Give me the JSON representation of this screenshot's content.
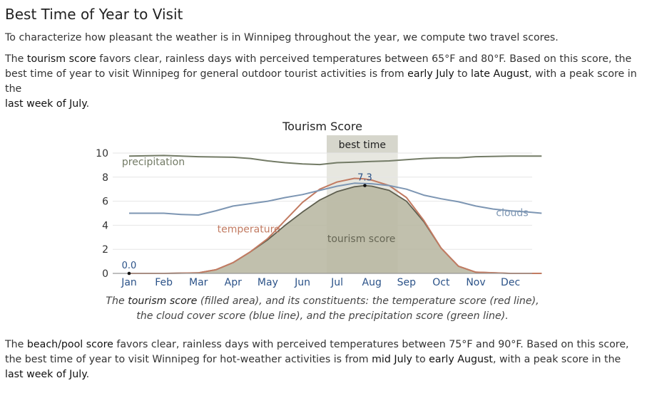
{
  "page": {
    "heading": "Best Time of Year to Visit",
    "intro": "To characterize how pleasant the weather is in Winnipeg throughout the year, we compute two travel scores.",
    "tourism": {
      "t1": "The ",
      "term": "tourism score",
      "t2": " favors clear, rainless days with perceived temperatures between 65°F and 80°F. Based on this score, the best time of year to visit Winnipeg for general outdoor tourist activities is from ",
      "start": "early July",
      "t3": " to ",
      "end": "late August",
      "t4": ", with a peak score in the ",
      "peak": "last week of July",
      "t5": "."
    },
    "beach": {
      "t1": "The ",
      "term": "beach/pool score",
      "t2": " favors clear, rainless days with perceived temperatures between 75°F and 90°F. Based on this score, the best time of year to visit Winnipeg for hot-weather activities is from ",
      "start": "mid July",
      "t3": " to ",
      "end": "early August",
      "t4": ", with a peak score in the ",
      "peak": "last week of July",
      "t5": "."
    },
    "caption": {
      "t1": "The ",
      "term": "tourism score",
      "t2": " (filled area), and its constituents: the temperature score (red line), the cloud cover score (blue line), and the precipitation score (green line)."
    }
  },
  "chart_data": {
    "type": "area",
    "title": "Tourism Score",
    "x_labels": [
      "Jan",
      "Feb",
      "Mar",
      "Apr",
      "May",
      "Jun",
      "Jul",
      "Aug",
      "Sep",
      "Oct",
      "Nov",
      "Dec"
    ],
    "y_ticks": [
      "0",
      "2",
      "4",
      "6",
      "8",
      "10"
    ],
    "ylim": [
      0,
      10
    ],
    "xlim": [
      1,
      12.9
    ],
    "grid": true,
    "highlight": {
      "label": "best time",
      "from": 6.7,
      "to": 8.75
    },
    "annotations": [
      {
        "label": "0.0",
        "x": 1,
        "y": 0.0
      },
      {
        "label": "7.3",
        "x": 7.8,
        "y": 7.3
      }
    ],
    "series": [
      {
        "name": "tourism score",
        "kind": "area",
        "color": "#b6b59f",
        "stroke": "#5f5f4f",
        "x": [
          1,
          2,
          3,
          3.5,
          4,
          4.5,
          5,
          5.5,
          6,
          6.5,
          7,
          7.5,
          7.8,
          8,
          8.5,
          9,
          9.5,
          10,
          10.5,
          11,
          12,
          12.9
        ],
        "y": [
          0,
          0,
          0.05,
          0.3,
          0.9,
          1.8,
          2.8,
          4.0,
          5.1,
          6.1,
          6.8,
          7.2,
          7.3,
          7.25,
          6.9,
          6.0,
          4.3,
          2.1,
          0.6,
          0.1,
          0,
          0
        ]
      },
      {
        "name": "temperature",
        "kind": "line",
        "color": "#c27b62",
        "x": [
          1,
          2,
          3,
          3.5,
          4,
          4.5,
          5,
          5.5,
          6,
          6.5,
          7,
          7.5,
          7.8,
          8,
          8.5,
          9,
          9.5,
          10,
          10.5,
          11,
          12,
          12.9
        ],
        "y": [
          0,
          0,
          0.05,
          0.3,
          0.9,
          1.8,
          2.9,
          4.4,
          5.9,
          7.0,
          7.6,
          7.9,
          7.85,
          7.75,
          7.3,
          6.3,
          4.4,
          2.1,
          0.6,
          0.1,
          0,
          0
        ]
      },
      {
        "name": "clouds",
        "kind": "line",
        "color": "#7d96b3",
        "x": [
          1,
          1.5,
          2,
          2.5,
          3,
          3.5,
          4,
          4.5,
          5,
          5.5,
          6,
          6.5,
          7,
          7.5,
          8,
          8.5,
          9,
          9.5,
          10,
          10.5,
          11,
          11.5,
          12,
          12.5,
          12.9
        ],
        "y": [
          5.0,
          5.0,
          5.0,
          4.9,
          4.85,
          5.2,
          5.6,
          5.8,
          6.0,
          6.3,
          6.55,
          6.9,
          7.25,
          7.5,
          7.45,
          7.3,
          7.0,
          6.5,
          6.2,
          5.95,
          5.6,
          5.35,
          5.2,
          5.1,
          5.0
        ]
      },
      {
        "name": "precipitation",
        "kind": "line",
        "color": "#737b66",
        "x": [
          1,
          2,
          3,
          4,
          4.5,
          5,
          5.5,
          6,
          6.5,
          7,
          7.5,
          8,
          8.5,
          9,
          9.5,
          10,
          10.5,
          11,
          12,
          12.9
        ],
        "y": [
          9.75,
          9.8,
          9.7,
          9.65,
          9.55,
          9.35,
          9.2,
          9.1,
          9.05,
          9.2,
          9.25,
          9.3,
          9.35,
          9.45,
          9.55,
          9.6,
          9.6,
          9.7,
          9.75,
          9.75
        ]
      }
    ],
    "series_labels": [
      {
        "text": "precipitation",
        "x": 1.7,
        "y": 9.0,
        "color": "#737b66"
      },
      {
        "text": "temperature",
        "x": 4.45,
        "y": 3.4,
        "color": "#c27b62"
      },
      {
        "text": "clouds",
        "x": 12.05,
        "y": 4.75,
        "color": "#7d96b3"
      },
      {
        "text": "tourism score",
        "x": 7.7,
        "y": 2.6,
        "color": "#666655"
      }
    ]
  }
}
